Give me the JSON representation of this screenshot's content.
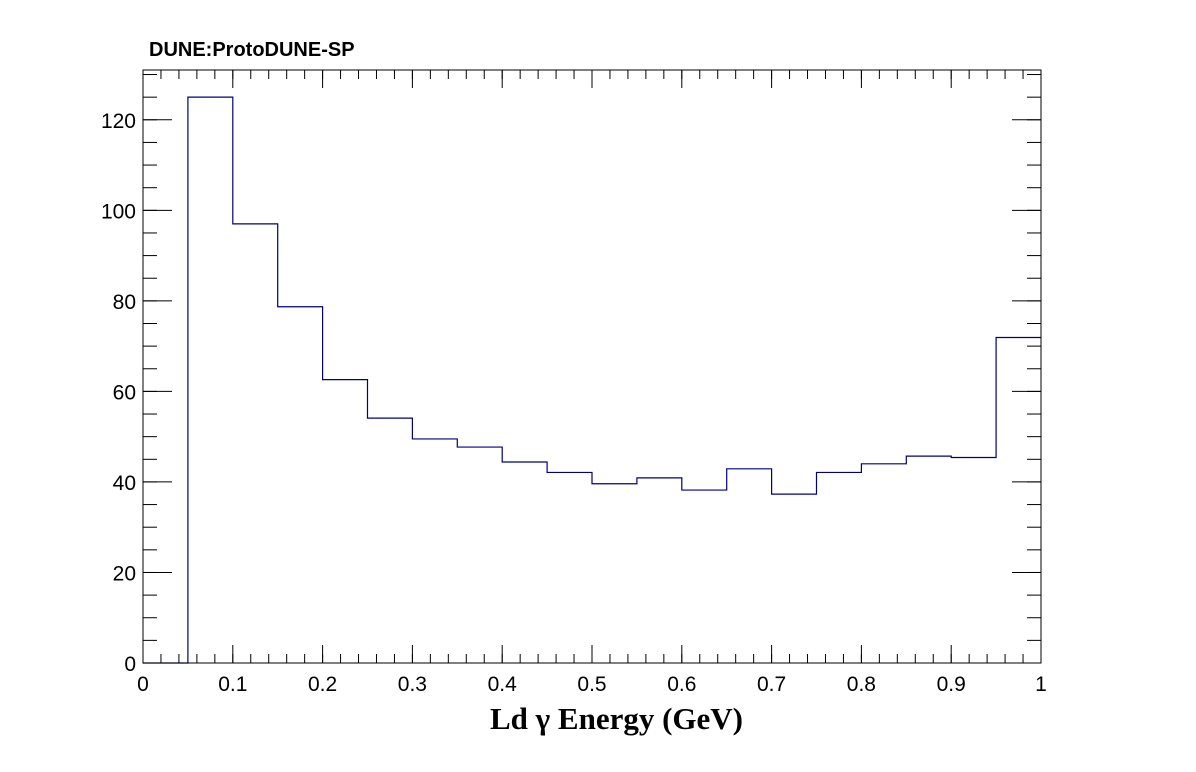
{
  "chart_data": {
    "type": "bar",
    "title": "DUNE:ProtoDUNE-SP",
    "xlabel": "Ld  γ Energy (GeV)",
    "ylabel": "",
    "xlim": [
      0,
      1
    ],
    "ylim": [
      0,
      131
    ],
    "bin_edges": [
      0,
      0.05,
      0.1,
      0.15,
      0.2,
      0.25,
      0.3,
      0.35,
      0.4,
      0.45,
      0.5,
      0.55,
      0.6,
      0.65,
      0.7,
      0.75,
      0.8,
      0.85,
      0.9,
      0.95,
      1.0
    ],
    "values": [
      0,
      125,
      97,
      78.7,
      62.6,
      54.1,
      49.5,
      47.7,
      44.4,
      42.1,
      39.6,
      40.9,
      38.2,
      42.9,
      37.3,
      42.1,
      44,
      45.7,
      45.4,
      71.9
    ],
    "x_ticks": [
      {
        "value": 0,
        "label": "0"
      },
      {
        "value": 0.1,
        "label": "0.1"
      },
      {
        "value": 0.2,
        "label": "0.2"
      },
      {
        "value": 0.3,
        "label": "0.3"
      },
      {
        "value": 0.4,
        "label": "0.4"
      },
      {
        "value": 0.5,
        "label": "0.5"
      },
      {
        "value": 0.6,
        "label": "0.6"
      },
      {
        "value": 0.7,
        "label": "0.7"
      },
      {
        "value": 0.8,
        "label": "0.8"
      },
      {
        "value": 0.9,
        "label": "0.9"
      },
      {
        "value": 1,
        "label": "1"
      }
    ],
    "y_ticks": [
      {
        "value": 0,
        "label": "0"
      },
      {
        "value": 20,
        "label": "20"
      },
      {
        "value": 40,
        "label": "40"
      },
      {
        "value": 60,
        "label": "60"
      },
      {
        "value": 80,
        "label": "80"
      },
      {
        "value": 100,
        "label": "100"
      },
      {
        "value": 120,
        "label": "120"
      }
    ],
    "x_minor_step": 0.02,
    "y_minor_step": 5,
    "grid": false,
    "legend": "none",
    "line_color": "#000080",
    "axis_color": "#000000"
  }
}
